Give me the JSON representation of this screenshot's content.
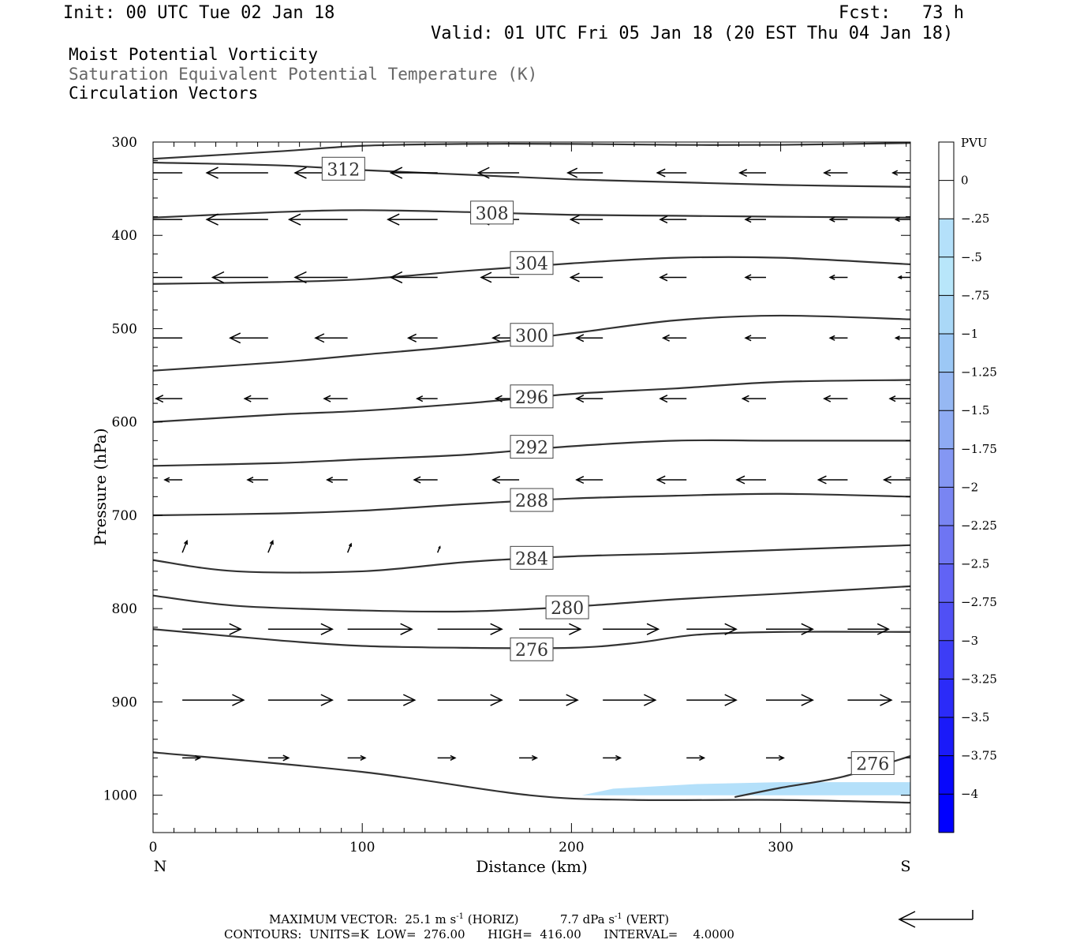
{
  "header": {
    "init": "Init: 00 UTC Tue 02 Jan 18",
    "fcst": "Fcst:   73 h",
    "valid": "Valid: 01 UTC Fri 05 Jan 18 (20 EST Thu 04 Jan 18)",
    "fields": [
      "Moist Potential Vorticity",
      "Saturation Equivalent Potential Temperature (K)",
      "Circulation Vectors"
    ]
  },
  "colors": {
    "contour": "#333333",
    "field2_text": "#666666",
    "pv_fill_light": "#b4e0fa",
    "pv_fill_mid": "#a8d0f5"
  },
  "footer": {
    "max_vector_label": "MAXIMUM VECTOR:",
    "max_vector_horiz": "25.1 m s",
    "horiz_unit": "-1",
    "horiz_tag": "(HORIZ)",
    "max_vector_vert": "7.7 dPa s",
    "vert_unit": "-1",
    "vert_tag": "(VERT)",
    "contours": "CONTOURS:  UNITS=K  LOW=  276.00      HIGH=  416.00      INTERVAL=    4.0000"
  },
  "chart_data": {
    "type": "cross-section",
    "xlabel": "Distance (km)",
    "ylabel": "Pressure (hPa)",
    "xlim": [
      0,
      362
    ],
    "ylim": [
      1040,
      300
    ],
    "x_ticks": [
      0,
      100,
      200,
      300
    ],
    "y_ticks": [
      300,
      400,
      500,
      600,
      700,
      800,
      900,
      1000
    ],
    "x_end_labels": {
      "left": "N",
      "right": "S"
    },
    "colorbar": {
      "unit": "PVU",
      "labels": [
        "0",
        "-.25",
        "-.5",
        "-.75",
        "-1",
        "-1.25",
        "-1.5",
        "-1.75",
        "-2",
        "-2.25",
        "-2.5",
        "-2.75",
        "-3",
        "-3.25",
        "-3.5",
        "-3.75",
        "-4"
      ],
      "colors": [
        "#ffffff",
        "#ffffff",
        "#b4e0fa",
        "#b8e6fa",
        "#aad8f7",
        "#9cc8f5",
        "#96b8f3",
        "#8eabf3",
        "#8497f3",
        "#7985f2",
        "#6e75f3",
        "#6163f5",
        "#5050f5",
        "#3d3df6",
        "#2b2bf8",
        "#1a1af9",
        "#0808fb",
        "#0000ff"
      ]
    },
    "theta_e_contours": [
      {
        "value": 312,
        "points": [
          [
            0,
            318
          ],
          [
            60,
            310
          ],
          [
            100,
            304
          ],
          [
            150,
            302
          ],
          [
            200,
            302
          ],
          [
            250,
            303
          ],
          [
            300,
            303
          ],
          [
            362,
            301
          ]
        ]
      },
      {
        "value": 312,
        "points": [
          [
            0,
            322
          ],
          [
            60,
            325
          ],
          [
            100,
            330
          ],
          [
            150,
            335
          ],
          [
            200,
            340
          ],
          [
            250,
            343
          ],
          [
            300,
            346
          ],
          [
            362,
            348
          ]
        ]
      },
      {
        "value": 308,
        "points": [
          [
            0,
            381
          ],
          [
            60,
            375
          ],
          [
            100,
            373
          ],
          [
            150,
            375
          ],
          [
            200,
            378
          ],
          [
            250,
            379
          ],
          [
            300,
            380
          ],
          [
            362,
            381
          ]
        ]
      },
      {
        "value": 304,
        "points": [
          [
            0,
            452
          ],
          [
            60,
            450
          ],
          [
            100,
            447
          ],
          [
            150,
            438
          ],
          [
            200,
            430
          ],
          [
            250,
            424
          ],
          [
            300,
            424
          ],
          [
            362,
            431
          ]
        ]
      },
      {
        "value": 300,
        "points": [
          [
            0,
            545
          ],
          [
            60,
            536
          ],
          [
            100,
            528
          ],
          [
            150,
            518
          ],
          [
            200,
            505
          ],
          [
            250,
            491
          ],
          [
            300,
            486
          ],
          [
            362,
            490
          ]
        ]
      },
      {
        "value": 296,
        "points": [
          [
            0,
            600
          ],
          [
            60,
            592
          ],
          [
            100,
            588
          ],
          [
            150,
            580
          ],
          [
            200,
            570
          ],
          [
            250,
            564
          ],
          [
            300,
            557
          ],
          [
            362,
            555
          ]
        ]
      },
      {
        "value": 292,
        "points": [
          [
            0,
            647
          ],
          [
            60,
            644
          ],
          [
            100,
            640
          ],
          [
            150,
            635
          ],
          [
            200,
            626
          ],
          [
            250,
            620
          ],
          [
            300,
            620
          ],
          [
            362,
            620
          ]
        ]
      },
      {
        "value": 288,
        "points": [
          [
            0,
            700
          ],
          [
            60,
            698
          ],
          [
            100,
            695
          ],
          [
            150,
            688
          ],
          [
            200,
            682
          ],
          [
            250,
            679
          ],
          [
            300,
            677
          ],
          [
            362,
            680
          ]
        ]
      },
      {
        "value": 284,
        "points": [
          [
            0,
            748
          ],
          [
            40,
            760
          ],
          [
            100,
            760
          ],
          [
            150,
            750
          ],
          [
            200,
            744
          ],
          [
            250,
            741
          ],
          [
            300,
            737
          ],
          [
            362,
            732
          ]
        ]
      },
      {
        "value": 280,
        "points": [
          [
            0,
            786
          ],
          [
            40,
            797
          ],
          [
            100,
            802
          ],
          [
            150,
            803
          ],
          [
            200,
            798
          ],
          [
            250,
            790
          ],
          [
            300,
            784
          ],
          [
            362,
            776
          ]
        ]
      },
      {
        "value": 276,
        "points": [
          [
            0,
            822
          ],
          [
            60,
            834
          ],
          [
            100,
            840
          ],
          [
            150,
            842
          ],
          [
            200,
            842
          ],
          [
            230,
            837
          ],
          [
            260,
            828
          ],
          [
            300,
            825
          ],
          [
            362,
            825
          ]
        ]
      },
      {
        "value": 276,
        "points": [
          [
            0,
            954
          ],
          [
            100,
            975
          ],
          [
            180,
            1000
          ],
          [
            230,
            1005
          ],
          [
            300,
            1005
          ],
          [
            362,
            1008
          ]
        ]
      },
      {
        "value": 276,
        "points": [
          [
            278,
            1002
          ],
          [
            300,
            992
          ],
          [
            330,
            980
          ],
          [
            362,
            958
          ]
        ]
      }
    ],
    "contour_labels": [
      {
        "value": 312,
        "x": 91,
        "p": 329
      },
      {
        "value": 308,
        "x": 162,
        "p": 376
      },
      {
        "value": 304,
        "x": 181,
        "p": 430
      },
      {
        "value": 300,
        "x": 181,
        "p": 507
      },
      {
        "value": 296,
        "x": 181,
        "p": 573
      },
      {
        "value": 292,
        "x": 181,
        "p": 627
      },
      {
        "value": 288,
        "x": 181,
        "p": 684
      },
      {
        "value": 284,
        "x": 181,
        "p": 746
      },
      {
        "value": 280,
        "x": 198,
        "p": 799
      },
      {
        "value": 276,
        "x": 181,
        "p": 844
      },
      {
        "value": 276,
        "x": 344,
        "p": 966
      }
    ],
    "pv_shading": [
      {
        "pv": -0.25,
        "points": [
          [
            205,
            1000
          ],
          [
            220,
            993
          ],
          [
            260,
            988
          ],
          [
            300,
            986
          ],
          [
            362,
            986
          ],
          [
            362,
            1000
          ]
        ]
      }
    ],
    "vectors": [
      {
        "p": 333,
        "x": [
          14,
          55,
          93,
          136,
          175,
          215,
          255,
          293,
          332,
          362
        ],
        "u": [
          -11.5,
          -10.5,
          -9.0,
          -8.0,
          -7.0,
          -6.0,
          -5.0,
          -4.5,
          -4.0,
          -3.0
        ],
        "w": [
          0,
          0,
          0,
          0,
          0,
          0,
          0,
          0,
          0,
          0
        ]
      },
      {
        "p": 383,
        "x": [
          14,
          55,
          93,
          136,
          175,
          215,
          255,
          293,
          332,
          362
        ],
        "u": [
          -11.0,
          -10.5,
          -10.0,
          -8.5,
          -7.0,
          -5.5,
          -4.5,
          -3.5,
          -3.0,
          -2.5
        ],
        "w": [
          0,
          0,
          0,
          0,
          0,
          0,
          0,
          0,
          0,
          0
        ]
      },
      {
        "p": 445,
        "x": [
          14,
          55,
          93,
          136,
          175,
          215,
          255,
          293,
          332,
          362
        ],
        "u": [
          -9.5,
          -9.5,
          -9.0,
          -8.0,
          -6.5,
          -5.5,
          -4.5,
          -3.5,
          -3.0,
          -2.0
        ],
        "w": [
          0,
          0,
          0,
          0,
          0,
          0,
          0,
          0,
          0,
          0
        ]
      },
      {
        "p": 510,
        "x": [
          14,
          55,
          93,
          136,
          175,
          215,
          255,
          293,
          332,
          362
        ],
        "u": [
          -7.0,
          -6.5,
          -5.5,
          -5.0,
          -4.5,
          -4.5,
          -4.0,
          -3.5,
          -3.0,
          -2.5
        ],
        "w": [
          0,
          0,
          0,
          0,
          0,
          0,
          0,
          0,
          0,
          0
        ]
      },
      {
        "p": 575,
        "x": [
          14,
          55,
          93,
          136,
          175,
          215,
          255,
          293,
          332,
          362
        ],
        "u": [
          -4.5,
          -4.0,
          -4.0,
          -3.5,
          -4.0,
          -4.5,
          -4.5,
          -4.0,
          -4.0,
          -3.5
        ],
        "w": [
          0,
          0,
          0,
          0,
          0,
          0,
          0,
          0,
          0,
          0
        ]
      },
      {
        "p": 662,
        "x": [
          14,
          55,
          93,
          136,
          175,
          215,
          255,
          293,
          332,
          362
        ],
        "u": [
          -3.0,
          -3.5,
          -3.5,
          -4.0,
          -4.5,
          -4.5,
          -5.0,
          -5.0,
          -5.0,
          -4.5
        ],
        "w": [
          0,
          0,
          0,
          0,
          0,
          0,
          0,
          0,
          0,
          0
        ]
      },
      {
        "p": 740,
        "x": [
          14,
          55,
          93,
          136,
          175
        ],
        "u": [
          0.8,
          0.8,
          0.6,
          0.4,
          0.2
        ],
        "w": [
          2.0,
          2.0,
          1.5,
          1.0,
          0.5
        ]
      },
      {
        "p": 822,
        "x": [
          14,
          55,
          93,
          136,
          175,
          215,
          255,
          293,
          332
        ],
        "u": [
          10.0,
          11.0,
          11.0,
          11.0,
          10.5,
          9.5,
          8.5,
          8.0,
          7.0
        ],
        "w": [
          0,
          0,
          0,
          0,
          0,
          0,
          0,
          0,
          0
        ]
      },
      {
        "p": 898,
        "x": [
          14,
          55,
          93,
          136,
          175,
          215,
          255,
          293,
          332
        ],
        "u": [
          10.5,
          11.0,
          11.5,
          11.0,
          10.0,
          9.0,
          8.5,
          8.0,
          7.5
        ],
        "w": [
          0,
          0,
          0,
          0,
          0,
          0,
          0,
          0,
          0
        ]
      },
      {
        "p": 960,
        "x": [
          14,
          55,
          93,
          136,
          175,
          215,
          255,
          293,
          332
        ],
        "u": [
          3.0,
          3.5,
          3.0,
          3.0,
          3.0,
          3.0,
          3.0,
          3.0,
          2.5
        ],
        "w": [
          0,
          0,
          0,
          0,
          0,
          0,
          0,
          0,
          0
        ]
      }
    ]
  }
}
